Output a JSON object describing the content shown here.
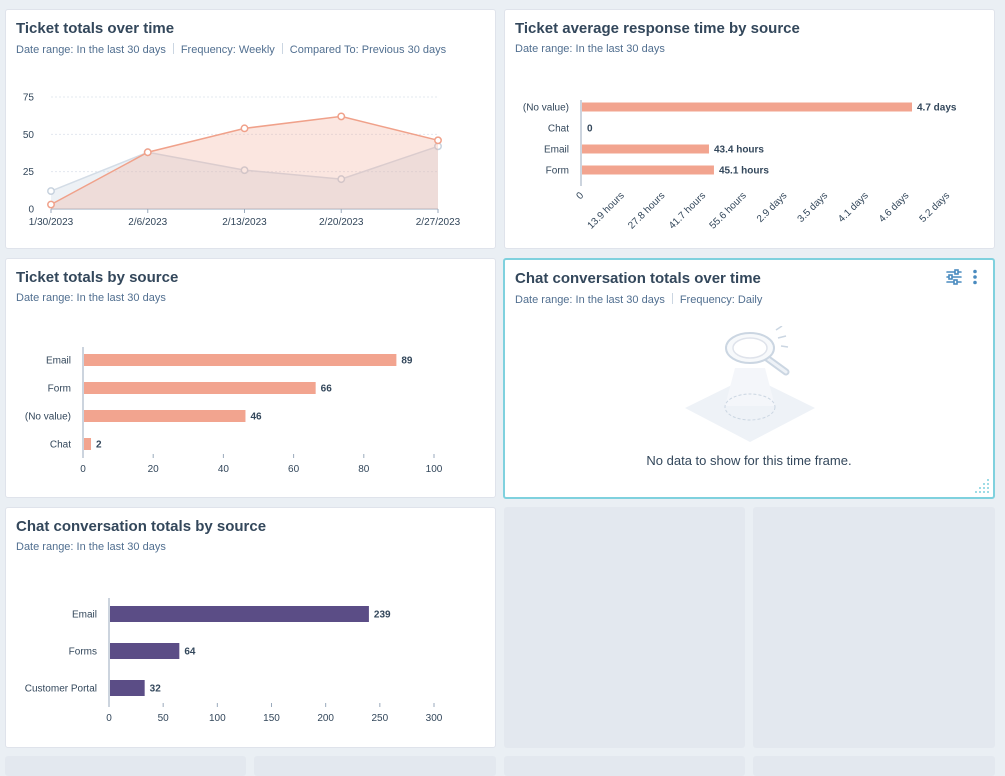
{
  "cards": {
    "ticket_totals_time": {
      "title": "Ticket totals over time",
      "filters": [
        "Date range: In the last 30 days",
        "Frequency: Weekly",
        "Compared To: Previous 30 days"
      ]
    },
    "ticket_response": {
      "title": "Ticket average response time by source",
      "filters": [
        "Date range: In the last 30 days"
      ]
    },
    "ticket_source": {
      "title": "Ticket totals by source",
      "filters": [
        "Date range: In the last 30 days"
      ]
    },
    "chat_time": {
      "title": "Chat conversation totals over time",
      "filters": [
        "Date range: In the last 30 days",
        "Frequency: Daily"
      ],
      "empty_message": "No data to show for this time frame.",
      "filter_icon": "sliders-icon",
      "menu_icon": "kebab-menu-icon"
    },
    "chat_source": {
      "title": "Chat conversation totals by source",
      "filters": [
        "Date range: In the last 30 days"
      ]
    }
  },
  "colors": {
    "primary_series": "#f2a48f",
    "comparison_series": "#d9e1ea",
    "chat_bars": "#5b4d86",
    "selected_border": "#7fd1de"
  },
  "chart_data": [
    {
      "id": "ticket_totals_time",
      "type": "area",
      "x": [
        "1/30/2023",
        "2/6/2023",
        "2/13/2023",
        "2/20/2023",
        "2/27/2023"
      ],
      "series": [
        {
          "values": [
            3,
            38,
            54,
            62,
            46
          ]
        },
        {
          "values": [
            12,
            38,
            26,
            20,
            42
          ]
        }
      ],
      "yticks": [
        "0",
        "25",
        "50",
        "75"
      ],
      "ylim": [
        0,
        75
      ],
      "grid": true
    },
    {
      "id": "ticket_response",
      "type": "bar",
      "orientation": "horizontal",
      "categories": [
        "(No value)",
        "Chat",
        "Email",
        "Form"
      ],
      "values_hours": [
        112.8,
        0,
        43.4,
        45.1
      ],
      "value_labels": [
        "4.7 days",
        "0",
        "43.4 hours",
        "45.1 hours"
      ],
      "xticks": [
        "0",
        "13.9 hours",
        "27.8 hours",
        "41.7 hours",
        "55.6 hours",
        "2.9 days",
        "3.5 days",
        "4.1 days",
        "4.6 days",
        "5.2 days"
      ],
      "xlim_hours": [
        0,
        125.1
      ]
    },
    {
      "id": "ticket_source",
      "type": "bar",
      "orientation": "horizontal",
      "categories": [
        "Email",
        "Form",
        "(No value)",
        "Chat"
      ],
      "values": [
        89,
        66,
        46,
        2
      ],
      "xticks": [
        "0",
        "20",
        "40",
        "60",
        "80",
        "100"
      ],
      "xlim": [
        0,
        100
      ]
    },
    {
      "id": "chat_source",
      "type": "bar",
      "orientation": "horizontal",
      "categories": [
        "Email",
        "Forms",
        "Customer Portal"
      ],
      "values": [
        239,
        64,
        32
      ],
      "xticks": [
        "0",
        "50",
        "100",
        "150",
        "200",
        "250",
        "300"
      ],
      "xlim": [
        0,
        300
      ]
    }
  ]
}
